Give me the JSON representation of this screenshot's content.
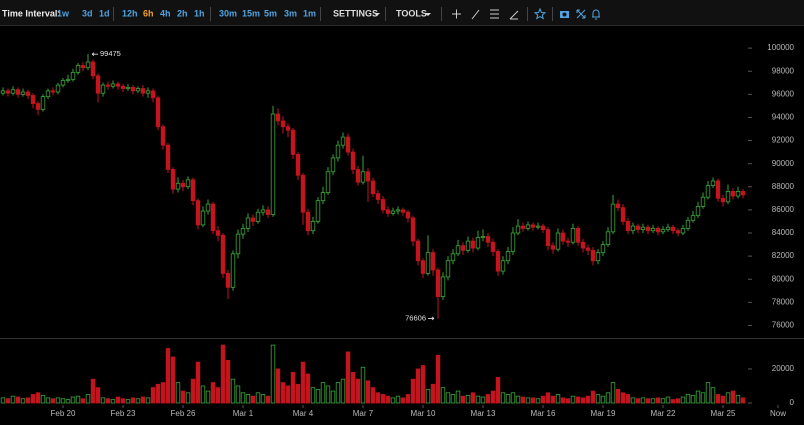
{
  "toolbar": {
    "label": "Time Interval:",
    "intervals": [
      "1w",
      "3d",
      "1d",
      "12h",
      "6h",
      "4h",
      "2h",
      "1h",
      "30m",
      "15m",
      "5m",
      "3m",
      "1m"
    ],
    "active_interval": 4,
    "settings": "SETTINGS",
    "tools": "TOOLS"
  },
  "chart_data": {
    "type": "candlestick",
    "up_color": "#3aa53a",
    "down_color": "#c3151f",
    "xlim": [
      -0.6,
      155.4
    ],
    "xticks": [
      {
        "value": 12,
        "label": "Feb 20"
      },
      {
        "value": 24,
        "label": "Feb 23"
      },
      {
        "value": 36,
        "label": "Feb 26"
      },
      {
        "value": 48,
        "label": "Mar 1"
      },
      {
        "value": 60,
        "label": "Mar 4"
      },
      {
        "value": 72,
        "label": "Mar 7"
      },
      {
        "value": 84,
        "label": "Mar 10"
      },
      {
        "value": 96,
        "label": "Mar 13"
      },
      {
        "value": 108,
        "label": "Mar 16"
      },
      {
        "value": 120,
        "label": "Mar 19"
      },
      {
        "value": 132,
        "label": "Mar 22"
      },
      {
        "value": 144,
        "label": "Mar 25"
      },
      {
        "value": 155,
        "label": "Now"
      }
    ],
    "ylim": [
      75000,
      102000
    ],
    "yticks": [
      76000,
      78000,
      80000,
      82000,
      84000,
      86000,
      88000,
      90000,
      92000,
      94000,
      96000,
      98000,
      100000
    ],
    "volume_ylim": [
      0,
      37000
    ],
    "volume_yticks": [
      0,
      20000
    ],
    "ohlc": [
      [
        96100,
        96600,
        95900,
        96300
      ],
      [
        96300,
        96500,
        95800,
        96100
      ],
      [
        96100,
        96700,
        95900,
        96400
      ],
      [
        96400,
        96600,
        95700,
        96000
      ],
      [
        96000,
        96500,
        95800,
        96200
      ],
      [
        96200,
        96400,
        95600,
        95900
      ],
      [
        95900,
        96100,
        94800,
        95200
      ],
      [
        95200,
        95400,
        94200,
        94700
      ],
      [
        94700,
        96000,
        94500,
        95800
      ],
      [
        95800,
        96500,
        95600,
        96300
      ],
      [
        96300,
        96600,
        95900,
        96200
      ],
      [
        96200,
        97000,
        96000,
        96800
      ],
      [
        96800,
        97400,
        96600,
        97200
      ],
      [
        97200,
        97700,
        97000,
        97300
      ],
      [
        97300,
        98200,
        97100,
        97900
      ],
      [
        97900,
        98700,
        97700,
        98500
      ],
      [
        98500,
        98800,
        98000,
        98300
      ],
      [
        98300,
        99475,
        98100,
        98800
      ],
      [
        98800,
        99000,
        97300,
        97600
      ],
      [
        97600,
        97800,
        95300,
        96100
      ],
      [
        96100,
        97000,
        95800,
        96800
      ],
      [
        96800,
        97100,
        96400,
        96700
      ],
      [
        96700,
        97200,
        96500,
        96900
      ],
      [
        96900,
        97100,
        96400,
        96700
      ],
      [
        96700,
        96900,
        96200,
        96500
      ],
      [
        96500,
        96900,
        96300,
        96600
      ],
      [
        96600,
        96800,
        96000,
        96300
      ],
      [
        96300,
        96700,
        96100,
        96500
      ],
      [
        96500,
        96800,
        95800,
        96100
      ],
      [
        96100,
        96600,
        95700,
        96300
      ],
      [
        96300,
        96500,
        95300,
        95700
      ],
      [
        95700,
        95900,
        92900,
        93200
      ],
      [
        93200,
        93400,
        91200,
        91600
      ],
      [
        91600,
        91800,
        89200,
        89500
      ],
      [
        89500,
        89700,
        87400,
        87800
      ],
      [
        87800,
        88800,
        87500,
        88300
      ],
      [
        88300,
        88600,
        87600,
        88000
      ],
      [
        88000,
        88900,
        87800,
        88600
      ],
      [
        88600,
        88800,
        86400,
        86800
      ],
      [
        86800,
        87000,
        84300,
        84700
      ],
      [
        84700,
        86300,
        84500,
        85900
      ],
      [
        85900,
        86900,
        85600,
        86500
      ],
      [
        86500,
        86700,
        83900,
        84200
      ],
      [
        84200,
        84600,
        83300,
        83800
      ],
      [
        83800,
        84000,
        80100,
        80500
      ],
      [
        80500,
        80800,
        78300,
        79300
      ],
      [
        79300,
        82500,
        79000,
        82200
      ],
      [
        82200,
        84300,
        81800,
        83900
      ],
      [
        83900,
        84800,
        83500,
        84400
      ],
      [
        84400,
        85700,
        84100,
        85300
      ],
      [
        85300,
        85600,
        84600,
        85000
      ],
      [
        85000,
        86100,
        84800,
        85800
      ],
      [
        85800,
        86400,
        85500,
        86000
      ],
      [
        86000,
        86300,
        85300,
        85600
      ],
      [
        85600,
        95000,
        85400,
        94300
      ],
      [
        94300,
        94800,
        93300,
        93700
      ],
      [
        93700,
        94100,
        92600,
        93200
      ],
      [
        93200,
        93500,
        92300,
        92900
      ],
      [
        92900,
        93100,
        90400,
        90800
      ],
      [
        90800,
        91000,
        88600,
        89000
      ],
      [
        89000,
        89200,
        84700,
        85800
      ],
      [
        85800,
        86100,
        83800,
        84200
      ],
      [
        84200,
        85400,
        83900,
        85000
      ],
      [
        85000,
        87100,
        84800,
        86800
      ],
      [
        86800,
        88000,
        86500,
        87500
      ],
      [
        87500,
        89700,
        87300,
        89300
      ],
      [
        89300,
        90800,
        89000,
        90500
      ],
      [
        90500,
        92000,
        90200,
        91600
      ],
      [
        91600,
        92700,
        91300,
        92300
      ],
      [
        92300,
        92600,
        90700,
        91000
      ],
      [
        91000,
        91300,
        89100,
        89500
      ],
      [
        89500,
        89800,
        88100,
        88400
      ],
      [
        88400,
        90700,
        88200,
        89300
      ],
      [
        89300,
        89600,
        86700,
        88500
      ],
      [
        88500,
        88800,
        87100,
        87400
      ],
      [
        87400,
        87700,
        86500,
        86900
      ],
      [
        86900,
        87200,
        85700,
        86000
      ],
      [
        86000,
        86300,
        85400,
        85700
      ],
      [
        85700,
        86200,
        85500,
        85900
      ],
      [
        85900,
        86300,
        85600,
        86000
      ],
      [
        86000,
        86200,
        85500,
        85800
      ],
      [
        85800,
        86000,
        84900,
        85300
      ],
      [
        85300,
        85500,
        82900,
        83300
      ],
      [
        83300,
        83500,
        81200,
        81600
      ],
      [
        81600,
        81800,
        80100,
        80500
      ],
      [
        80500,
        83800,
        80300,
        82300
      ],
      [
        82300,
        82600,
        80300,
        80800
      ],
      [
        80800,
        81000,
        76606,
        78500
      ],
      [
        78500,
        80600,
        78200,
        80200
      ],
      [
        80200,
        82000,
        79900,
        81600
      ],
      [
        81600,
        82600,
        81300,
        82200
      ],
      [
        82200,
        83400,
        82000,
        82900
      ],
      [
        82900,
        83200,
        82100,
        82500
      ],
      [
        82500,
        83700,
        82300,
        83300
      ],
      [
        83300,
        83600,
        82300,
        82700
      ],
      [
        82700,
        84200,
        82500,
        83600
      ],
      [
        83600,
        84300,
        83300,
        83700
      ],
      [
        83700,
        84000,
        82800,
        83200
      ],
      [
        83200,
        83500,
        82000,
        82400
      ],
      [
        82400,
        82600,
        80300,
        80700
      ],
      [
        80700,
        82000,
        80400,
        81600
      ],
      [
        81600,
        82800,
        81300,
        82400
      ],
      [
        82400,
        84500,
        82100,
        84000
      ],
      [
        84000,
        85200,
        83800,
        84600
      ],
      [
        84600,
        84900,
        84100,
        84400
      ],
      [
        84400,
        85000,
        84200,
        84700
      ],
      [
        84700,
        84900,
        84200,
        84500
      ],
      [
        84500,
        84900,
        84300,
        84600
      ],
      [
        84600,
        84800,
        84000,
        84300
      ],
      [
        84300,
        84500,
        82500,
        82900
      ],
      [
        82900,
        83200,
        82200,
        82600
      ],
      [
        82600,
        84400,
        82400,
        84000
      ],
      [
        84000,
        84300,
        83000,
        83300
      ],
      [
        83300,
        83600,
        82800,
        83200
      ],
      [
        83200,
        84800,
        83000,
        84400
      ],
      [
        84400,
        84600,
        82900,
        83200
      ],
      [
        83200,
        83500,
        82300,
        82700
      ],
      [
        82700,
        83000,
        82100,
        82500
      ],
      [
        82500,
        82800,
        81200,
        81600
      ],
      [
        81600,
        82600,
        81300,
        82300
      ],
      [
        82300,
        83300,
        82000,
        83000
      ],
      [
        83000,
        84500,
        82800,
        84100
      ],
      [
        84100,
        87300,
        83900,
        86500
      ],
      [
        86500,
        86900,
        85900,
        86200
      ],
      [
        86200,
        86500,
        84700,
        85000
      ],
      [
        85000,
        85300,
        83900,
        84200
      ],
      [
        84200,
        84900,
        83900,
        84600
      ],
      [
        84600,
        84800,
        84000,
        84300
      ],
      [
        84300,
        84800,
        84000,
        84500
      ],
      [
        84500,
        84700,
        83900,
        84200
      ],
      [
        84200,
        84700,
        84000,
        84400
      ],
      [
        84400,
        84600,
        83800,
        84100
      ],
      [
        84100,
        84600,
        83900,
        84300
      ],
      [
        84300,
        84800,
        84100,
        84500
      ],
      [
        84500,
        84700,
        83900,
        84200
      ],
      [
        84200,
        84400,
        83700,
        84000
      ],
      [
        84000,
        84700,
        83800,
        84400
      ],
      [
        84400,
        85400,
        84200,
        85100
      ],
      [
        85100,
        85900,
        84900,
        85500
      ],
      [
        85500,
        86700,
        85300,
        86300
      ],
      [
        86300,
        87500,
        86100,
        87100
      ],
      [
        87100,
        88500,
        86900,
        88100
      ],
      [
        88100,
        88800,
        87900,
        88500
      ],
      [
        88500,
        88700,
        86700,
        87000
      ],
      [
        87000,
        87300,
        86300,
        86700
      ],
      [
        86700,
        88200,
        86500,
        87600
      ],
      [
        87600,
        87900,
        86900,
        87200
      ],
      [
        87200,
        88000,
        87000,
        87600
      ],
      [
        87600,
        87800,
        87000,
        87300
      ]
    ],
    "volume": [
      3000,
      2500,
      4000,
      3500,
      2500,
      3000,
      5000,
      6000,
      4500,
      3000,
      2500,
      3000,
      2500,
      2000,
      3500,
      4000,
      2500,
      5000,
      14000,
      9000,
      3000,
      2500,
      2000,
      3500,
      2500,
      2000,
      3000,
      2500,
      3500,
      3000,
      9000,
      11000,
      12000,
      32000,
      27000,
      12000,
      7000,
      6000,
      14000,
      24000,
      10000,
      7000,
      12000,
      9000,
      34000,
      25000,
      14000,
      10000,
      6000,
      5000,
      4000,
      6000,
      5000,
      4000,
      34000,
      20000,
      12000,
      10000,
      18000,
      11000,
      24000,
      17000,
      9000,
      8000,
      12000,
      10000,
      7000,
      12000,
      14000,
      30000,
      18000,
      14000,
      21000,
      13000,
      9000,
      6000,
      5000,
      4000,
      3000,
      4000,
      3000,
      5000,
      14000,
      20000,
      22000,
      8000,
      11000,
      28000,
      9000,
      6000,
      5000,
      7000,
      4000,
      4500,
      6000,
      4000,
      3500,
      5000,
      7000,
      15000,
      6000,
      5000,
      6000,
      4000,
      3500,
      3000,
      3000,
      2500,
      4000,
      6000,
      4000,
      5000,
      3000,
      2500,
      4000,
      3500,
      3000,
      4000,
      7000,
      5000,
      4000,
      6000,
      12000,
      8000,
      6000,
      5000,
      3000,
      2500,
      3000,
      2500,
      2500,
      3000,
      2500,
      3500,
      2000,
      2500,
      3500,
      5000,
      4500,
      7000,
      6000,
      12000,
      9000,
      5000,
      4000,
      6000,
      7000,
      4500,
      3000
    ]
  }
}
